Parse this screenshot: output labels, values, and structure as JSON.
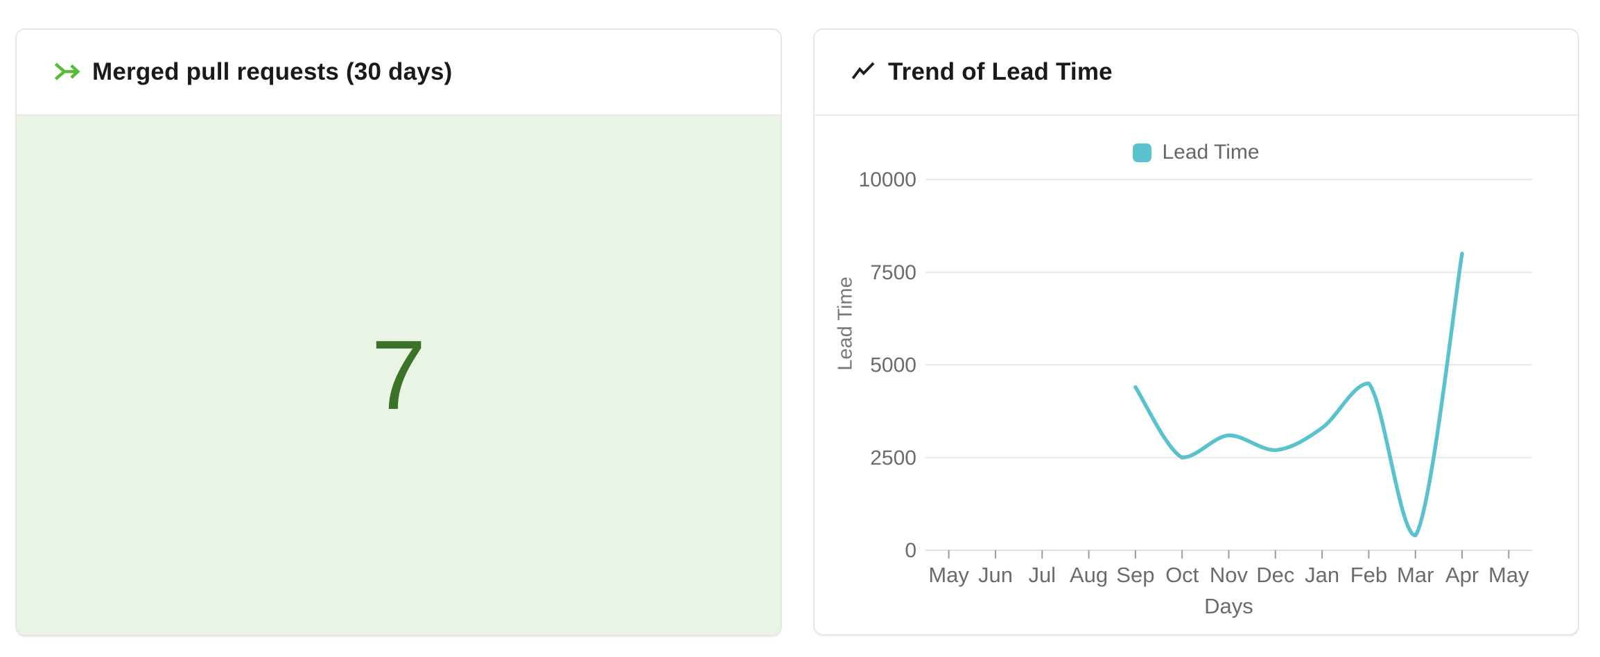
{
  "cards": {
    "merged_prs": {
      "title": "Merged pull requests (30 days)",
      "icon": "merge-arrow-icon",
      "icon_color": "#54bd37",
      "value": "7",
      "value_color": "#3a7328",
      "panel_bg": "#e9f4e5"
    },
    "lead_time": {
      "title": "Trend of Lead Time",
      "icon": "trend-up-icon",
      "icon_color": "#1d1d1d",
      "legend_label": "Lead Time",
      "legend_color": "#5ac2ce"
    }
  },
  "chart_data": {
    "type": "line",
    "title": "Trend of Lead Time",
    "xlabel": "Days",
    "ylabel": "Lead Time",
    "categories": [
      "May",
      "Jun",
      "Jul",
      "Aug",
      "Sep",
      "Oct",
      "Nov",
      "Dec",
      "Jan",
      "Feb",
      "Mar",
      "Apr",
      "May"
    ],
    "series": [
      {
        "name": "Lead Time",
        "color": "#5ac2ce",
        "values": [
          null,
          null,
          null,
          null,
          4400,
          2500,
          3100,
          2700,
          3300,
          4500,
          400,
          8000,
          null
        ]
      }
    ],
    "ylim": [
      0,
      10000
    ],
    "yticks": [
      0,
      2500,
      5000,
      7500,
      10000
    ],
    "grid": true,
    "smooth": true,
    "legend_position": "top",
    "gridline_color": "#e8e8e8",
    "axis_line_color": "#e0e0e0",
    "tick_color": "#9a9a9a",
    "tick_label_color": "#6b6b6b"
  }
}
